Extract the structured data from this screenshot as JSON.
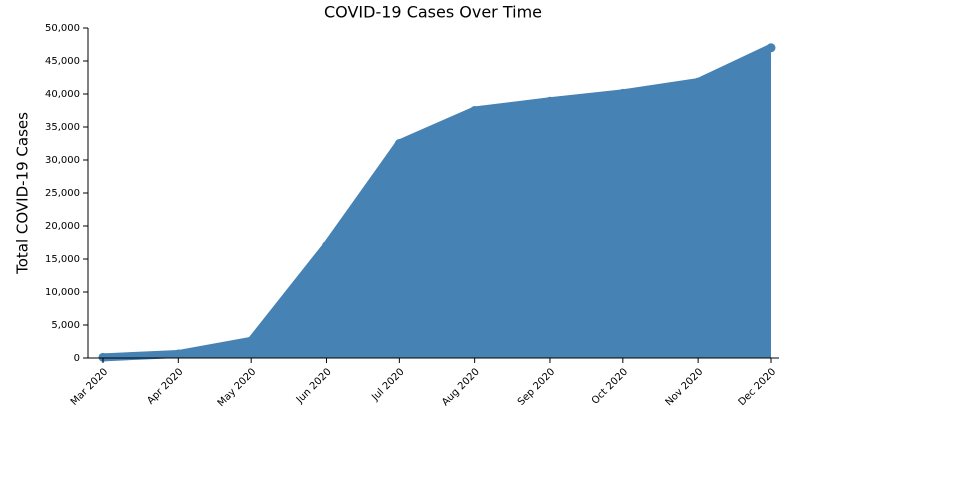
{
  "chart_data": {
    "type": "area",
    "title": "COVID-19 Cases Over Time",
    "y_label": "Total COVID-19 Cases",
    "x": [
      "2020-03",
      "2020-04",
      "2020-05",
      "2020-06",
      "2020-07",
      "2020-08",
      "2020-09",
      "2020-10",
      "2020-11",
      "2020-12"
    ],
    "values": [
      100,
      600,
      2600,
      17000,
      32500,
      37500,
      38900,
      40100,
      41800,
      47000
    ],
    "color": "#4682b4",
    "xlim": [
      "2020-03",
      "2020-12"
    ],
    "xticks": [
      {
        "value": "2020-03",
        "label": "Mar 2020"
      },
      {
        "value": "2020-04",
        "label": "Apr 2020"
      },
      {
        "value": "2020-05",
        "label": "May 2020"
      },
      {
        "value": "2020-06",
        "label": "Jun 2020"
      },
      {
        "value": "2020-07",
        "label": "Jul 2020"
      },
      {
        "value": "2020-08",
        "label": "Aug 2020"
      },
      {
        "value": "2020-09",
        "label": "Sep 2020"
      },
      {
        "value": "2020-10",
        "label": "Oct 2020"
      },
      {
        "value": "2020-11",
        "label": "Nov 2020"
      },
      {
        "value": "2020-12",
        "label": "Dec 2020"
      }
    ],
    "ylim": [
      0,
      50000
    ],
    "yticks": [
      0,
      {
        "value": 5000,
        "label": "5,000"
      },
      {
        "value": 10000,
        "label": "10,000"
      },
      {
        "value": 15000,
        "label": "15,000"
      },
      {
        "value": 20000,
        "label": "20,000"
      },
      {
        "value": 25000,
        "label": "25,000"
      },
      {
        "value": 30000,
        "label": "30,000"
      },
      {
        "value": 35000,
        "label": "35,000"
      },
      {
        "value": 40000,
        "label": "40,000"
      },
      {
        "value": 45000,
        "label": "45,000"
      },
      {
        "value": 50000,
        "label": "50,000"
      }
    ]
  }
}
